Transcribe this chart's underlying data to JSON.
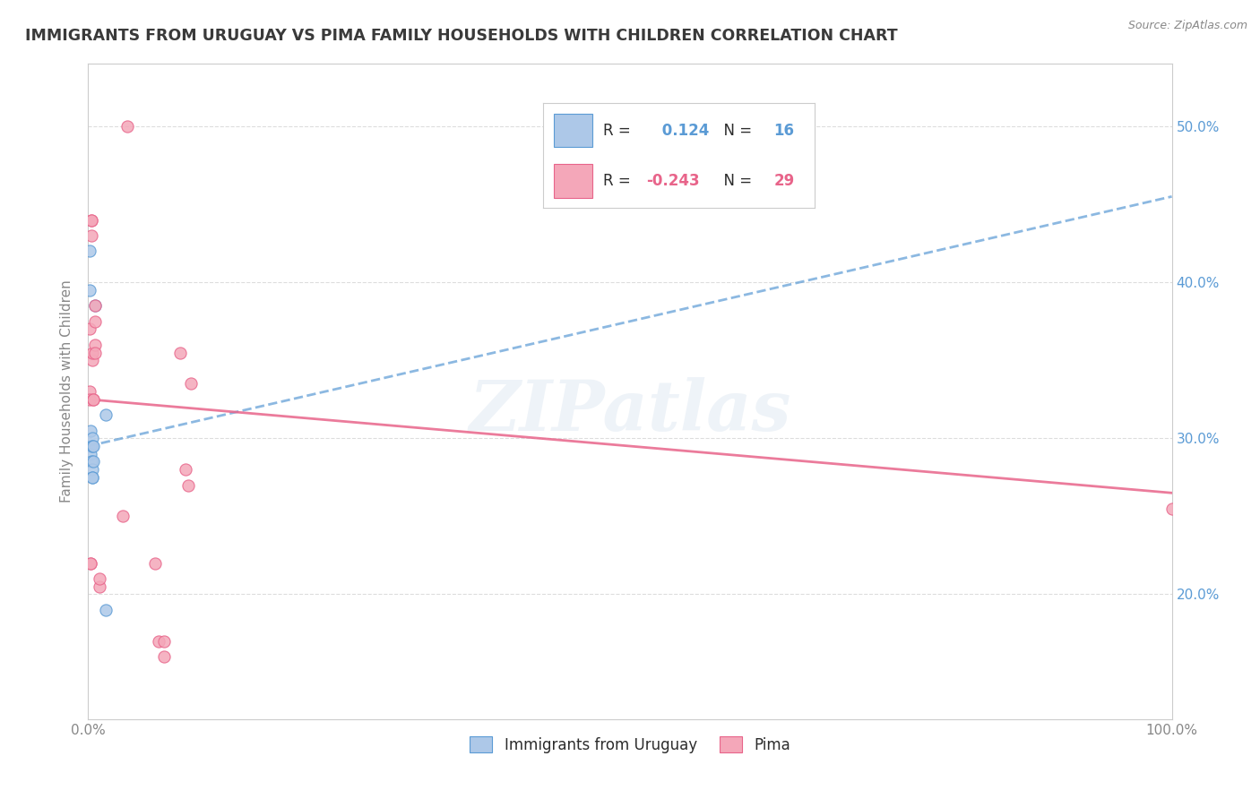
{
  "title": "IMMIGRANTS FROM URUGUAY VS PIMA FAMILY HOUSEHOLDS WITH CHILDREN CORRELATION CHART",
  "source_text": "Source: ZipAtlas.com",
  "ylabel": "Family Households with Children",
  "watermark": "ZIPatlas",
  "blue_label": "Immigrants from Uruguay",
  "pink_label": "Pima",
  "blue_R": "0.124",
  "blue_N": "16",
  "pink_R": "-0.243",
  "pink_N": "29",
  "blue_color": "#adc8e8",
  "blue_line_color": "#5b9bd5",
  "pink_color": "#f4a7b9",
  "pink_line_color": "#e8648a",
  "blue_points_x": [
    0.1,
    0.1,
    0.2,
    0.2,
    0.2,
    0.3,
    0.4,
    0.4,
    0.4,
    0.4,
    0.4,
    0.5,
    0.5,
    0.6,
    1.6,
    1.6
  ],
  "blue_points_y": [
    42.0,
    39.5,
    30.5,
    29.5,
    29.0,
    28.5,
    28.0,
    27.5,
    27.5,
    30.0,
    29.5,
    29.5,
    28.5,
    38.5,
    31.5,
    19.0
  ],
  "pink_points_x": [
    0.1,
    0.1,
    0.1,
    0.2,
    0.2,
    0.3,
    0.3,
    0.3,
    0.4,
    0.4,
    0.5,
    0.5,
    0.6,
    0.6,
    0.6,
    0.6,
    1.0,
    1.0,
    3.2,
    3.6,
    6.2,
    6.5,
    7.0,
    7.0,
    8.5,
    9.0,
    9.2,
    9.5,
    100.0
  ],
  "pink_points_y": [
    33.0,
    32.5,
    37.0,
    22.0,
    22.0,
    44.0,
    44.0,
    43.0,
    35.0,
    35.5,
    32.5,
    32.5,
    38.5,
    37.5,
    36.0,
    35.5,
    20.5,
    21.0,
    25.0,
    50.0,
    22.0,
    17.0,
    17.0,
    16.0,
    35.5,
    28.0,
    27.0,
    33.5,
    25.5
  ],
  "xlim": [
    0.0,
    100.0
  ],
  "ylim": [
    12.0,
    54.0
  ],
  "yticks": [
    20.0,
    30.0,
    40.0,
    50.0
  ],
  "ytick_labels": [
    "20.0%",
    "30.0%",
    "40.0%",
    "50.0%"
  ],
  "xtick_positions": [
    0.0,
    10.0,
    20.0,
    30.0,
    40.0,
    50.0,
    60.0,
    70.0,
    80.0,
    90.0,
    100.0
  ],
  "xtick_labels": [
    "0.0%",
    "",
    "",
    "",
    "",
    "",
    "",
    "",
    "",
    "",
    "100.0%"
  ],
  "title_color": "#3a3a3a",
  "title_fontsize": 12.5,
  "axis_color": "#cccccc",
  "grid_color": "#dddddd",
  "tick_label_color": "#888888",
  "right_tick_color": "#5b9bd5",
  "background_color": "#ffffff",
  "blue_trend_x0": 0.0,
  "blue_trend_y0": 29.5,
  "blue_trend_x1": 100.0,
  "blue_trend_y1": 45.5,
  "pink_trend_x0": 0.0,
  "pink_trend_y0": 32.5,
  "pink_trend_x1": 100.0,
  "pink_trend_y1": 26.5
}
